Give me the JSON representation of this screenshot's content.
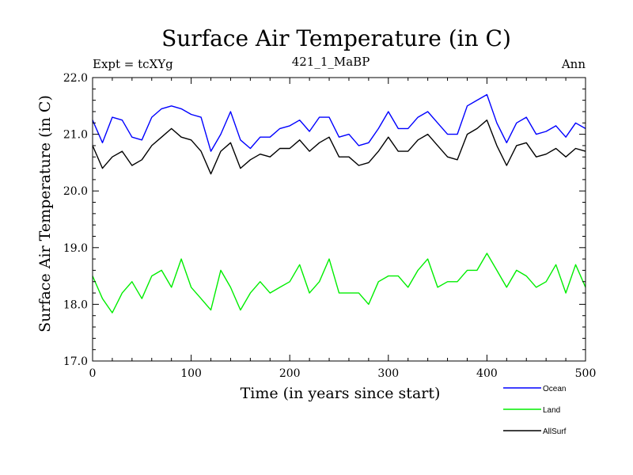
{
  "chart_data": {
    "type": "line",
    "title": "Surface Air Temperature (in C)",
    "subtitle_left": "Expt = tcXYg",
    "subtitle_center": "421_1_MaBP",
    "subtitle_right": "Ann",
    "xlabel": "Time (in years since start)",
    "ylabel": "Surface Air Temperature (in C)",
    "xlim": [
      0,
      500
    ],
    "ylim": [
      17.0,
      22.0
    ],
    "x_ticks": [
      0,
      100,
      200,
      300,
      400,
      500
    ],
    "x_tick_labels": [
      "0",
      "100",
      "200",
      "300",
      "400",
      "500"
    ],
    "y_ticks": [
      17.0,
      18.0,
      19.0,
      20.0,
      21.0,
      22.0
    ],
    "y_tick_labels": [
      "17.0",
      "18.0",
      "19.0",
      "20.0",
      "21.0",
      "22.0"
    ],
    "grid": false,
    "legend_position": "bottom-right, below plot",
    "x": [
      0,
      10,
      20,
      30,
      40,
      50,
      60,
      70,
      80,
      90,
      100,
      110,
      120,
      130,
      140,
      150,
      160,
      170,
      180,
      190,
      200,
      210,
      220,
      230,
      240,
      250,
      260,
      270,
      280,
      290,
      300,
      310,
      320,
      330,
      340,
      350,
      360,
      370,
      380,
      390,
      400,
      410,
      420,
      430,
      440,
      450,
      460,
      470,
      480,
      490,
      500
    ],
    "series": [
      {
        "name": "Ocean",
        "color": "#0000ff",
        "values": [
          21.25,
          20.85,
          21.3,
          21.25,
          20.95,
          20.9,
          21.3,
          21.45,
          21.5,
          21.45,
          21.35,
          21.3,
          20.7,
          21.0,
          21.4,
          20.9,
          20.75,
          20.95,
          20.95,
          21.1,
          21.15,
          21.25,
          21.05,
          21.3,
          21.3,
          20.95,
          21.0,
          20.8,
          20.85,
          21.1,
          21.4,
          21.1,
          21.1,
          21.3,
          21.4,
          21.2,
          21.0,
          21.0,
          21.5,
          21.6,
          21.7,
          21.2,
          20.85,
          21.2,
          21.3,
          21.0,
          21.05,
          21.15,
          20.95,
          21.2,
          21.1
        ]
      },
      {
        "name": "Land",
        "color": "#00ee00",
        "values": [
          18.5,
          18.1,
          17.85,
          18.2,
          18.4,
          18.1,
          18.5,
          18.6,
          18.3,
          18.8,
          18.3,
          18.1,
          17.9,
          18.6,
          18.3,
          17.9,
          18.2,
          18.4,
          18.2,
          18.3,
          18.4,
          18.7,
          18.2,
          18.4,
          18.8,
          18.2,
          18.2,
          18.2,
          18.0,
          18.4,
          18.5,
          18.5,
          18.3,
          18.6,
          18.8,
          18.3,
          18.4,
          18.4,
          18.6,
          18.6,
          18.9,
          18.6,
          18.3,
          18.6,
          18.5,
          18.3,
          18.4,
          18.7,
          18.2,
          18.7,
          18.3
        ]
      },
      {
        "name": "AllSurf",
        "color": "#000000",
        "values": [
          20.8,
          20.4,
          20.6,
          20.7,
          20.45,
          20.55,
          20.8,
          20.95,
          21.1,
          20.95,
          20.9,
          20.7,
          20.3,
          20.7,
          20.85,
          20.4,
          20.55,
          20.65,
          20.6,
          20.75,
          20.75,
          20.9,
          20.7,
          20.85,
          20.95,
          20.6,
          20.6,
          20.45,
          20.5,
          20.7,
          20.95,
          20.7,
          20.7,
          20.9,
          21.0,
          20.8,
          20.6,
          20.55,
          21.0,
          21.1,
          21.25,
          20.8,
          20.45,
          20.8,
          20.85,
          20.6,
          20.65,
          20.75,
          20.6,
          20.75,
          20.7
        ]
      }
    ]
  }
}
